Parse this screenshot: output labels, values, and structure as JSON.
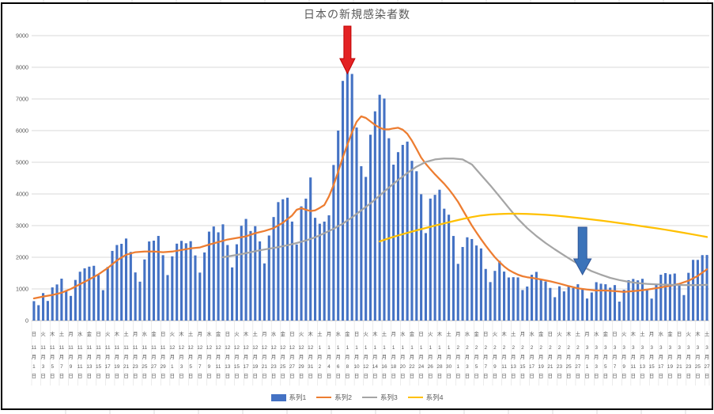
{
  "sheet": {
    "grid_color": "#D9D9D9",
    "background": "#FFFFFF"
  },
  "chart": {
    "title": "日本の新規感染者数",
    "frame_color": "#000000",
    "text_color": "#595959",
    "gridline_color": "#D9D9D9",
    "axis_line_color": "#BFBFBF",
    "y_axis": {
      "min": 0,
      "max": 9000,
      "step": 1000,
      "tick_labels": [
        "0",
        "1000",
        "2000",
        "3000",
        "4000",
        "5000",
        "6000",
        "7000",
        "8000",
        "9000"
      ]
    },
    "x_axis": {
      "weekdays": [
        "日",
        "月",
        "火",
        "水",
        "木",
        "金",
        "土"
      ],
      "start_weekday": "日",
      "month_suffix": "月",
      "day_suffix": "日",
      "months": [
        {
          "num": "11",
          "days": 30
        },
        {
          "num": "12",
          "days": 31
        },
        {
          "num": "1",
          "days": 31
        },
        {
          "num": "2",
          "days": 28
        },
        {
          "num": "3",
          "days": 27
        }
      ],
      "label_interval": 2
    },
    "legend": [
      {
        "label": "系列1",
        "swatch": "bar",
        "color": "#4472C4"
      },
      {
        "label": "系列2",
        "swatch": "line",
        "color": "#ED7D31"
      },
      {
        "label": "系列3",
        "swatch": "line",
        "color": "#A5A5A5"
      },
      {
        "label": "系列4",
        "swatch": "line",
        "color": "#FFC000"
      }
    ]
  },
  "chart_data": {
    "type": "bar",
    "title": "日本の新規感染者数",
    "xlabel": "",
    "ylabel": "",
    "ylim": [
      0,
      9000
    ],
    "x_range_label": "11月1日(日) - 3月27日(土), ラベルは2日毎",
    "series": [
      {
        "name": "系列1",
        "type": "bar",
        "color": "#4472C4",
        "values": [
          614,
          487,
          868,
          620,
          1048,
          1141,
          1325,
          957,
          780,
          1284,
          1543,
          1650,
          1704,
          1731,
          1440,
          961,
          1693,
          2201,
          2387,
          2425,
          2592,
          2168,
          1521,
          1229,
          1931,
          2499,
          2525,
          2674,
          2066,
          1438,
          2030,
          2430,
          2518,
          2442,
          2508,
          2058,
          1516,
          2152,
          2810,
          2972,
          2788,
          3041,
          2387,
          1680,
          2410,
          2994,
          3211,
          2829,
          2982,
          2501,
          1806,
          2687,
          3271,
          3742,
          3832,
          3881,
          3127,
          2403,
          3607,
          3852,
          4520,
          3246,
          3059,
          3127,
          3325,
          4915,
          6001,
          7570,
          7957,
          7790,
          6097,
          4876,
          4538,
          5870,
          6609,
          7133,
          7014,
          5759,
          4925,
          5320,
          5549,
          5653,
          5045,
          4717,
          3990,
          2764,
          3853,
          3971,
          4133,
          3534,
          3344,
          2673,
          1792,
          2324,
          2631,
          2576,
          2372,
          2279,
          1631,
          1216,
          1570,
          1887,
          1548,
          1362,
          1371,
          1364,
          965,
          1076,
          1448,
          1538,
          1301,
          1234,
          1032,
          739,
          1083,
          922,
          1076,
          1029,
          1148,
          999,
          697,
          888,
          1213,
          1165,
          1148,
          1040,
          1121,
          599,
          972,
          1277,
          1316,
          1271,
          1320,
          988,
          695,
          1133,
          1449,
          1500,
          1463,
          1486,
          1121,
          806,
          1509,
          1918,
          1917,
          2068,
          2072
        ]
      },
      {
        "name": "系列2",
        "type": "line",
        "color": "#ED7D31",
        "points_day_value": [
          [
            0,
            700
          ],
          [
            2,
            760
          ],
          [
            4,
            810
          ],
          [
            6,
            880
          ],
          [
            8,
            1000
          ],
          [
            10,
            1150
          ],
          [
            12,
            1300
          ],
          [
            14,
            1460
          ],
          [
            16,
            1660
          ],
          [
            18,
            1900
          ],
          [
            20,
            2080
          ],
          [
            22,
            2160
          ],
          [
            24,
            2180
          ],
          [
            26,
            2180
          ],
          [
            28,
            2160
          ],
          [
            30,
            2180
          ],
          [
            32,
            2230
          ],
          [
            34,
            2280
          ],
          [
            36,
            2310
          ],
          [
            38,
            2400
          ],
          [
            40,
            2480
          ],
          [
            42,
            2560
          ],
          [
            44,
            2610
          ],
          [
            46,
            2660
          ],
          [
            48,
            2760
          ],
          [
            50,
            2830
          ],
          [
            52,
            2920
          ],
          [
            54,
            3090
          ],
          [
            56,
            3320
          ],
          [
            57,
            3500
          ],
          [
            58,
            3550
          ],
          [
            59,
            3500
          ],
          [
            60,
            3460
          ],
          [
            61,
            3480
          ],
          [
            62,
            3560
          ],
          [
            63,
            3650
          ],
          [
            64,
            3920
          ],
          [
            65,
            4280
          ],
          [
            66,
            4700
          ],
          [
            67,
            5150
          ],
          [
            68,
            5560
          ],
          [
            69,
            5950
          ],
          [
            70,
            6280
          ],
          [
            71,
            6450
          ],
          [
            72,
            6400
          ],
          [
            73,
            6290
          ],
          [
            74,
            6180
          ],
          [
            75,
            6090
          ],
          [
            76,
            6040
          ],
          [
            77,
            6040
          ],
          [
            78,
            6070
          ],
          [
            79,
            6090
          ],
          [
            80,
            6030
          ],
          [
            81,
            5900
          ],
          [
            82,
            5680
          ],
          [
            83,
            5420
          ],
          [
            84,
            5150
          ],
          [
            85,
            4950
          ],
          [
            86,
            4780
          ],
          [
            87,
            4620
          ],
          [
            88,
            4470
          ],
          [
            89,
            4320
          ],
          [
            90,
            4150
          ],
          [
            91,
            3960
          ],
          [
            92,
            3750
          ],
          [
            93,
            3500
          ],
          [
            94,
            3250
          ],
          [
            95,
            3000
          ],
          [
            96,
            2780
          ],
          [
            97,
            2570
          ],
          [
            98,
            2370
          ],
          [
            99,
            2180
          ],
          [
            100,
            2000
          ],
          [
            101,
            1850
          ],
          [
            102,
            1710
          ],
          [
            103,
            1600
          ],
          [
            104,
            1520
          ],
          [
            105,
            1450
          ],
          [
            106,
            1400
          ],
          [
            107,
            1370
          ],
          [
            108,
            1350
          ],
          [
            110,
            1300
          ],
          [
            112,
            1240
          ],
          [
            114,
            1170
          ],
          [
            116,
            1090
          ],
          [
            118,
            1020
          ],
          [
            120,
            980
          ],
          [
            122,
            950
          ],
          [
            124,
            950
          ],
          [
            126,
            930
          ],
          [
            128,
            905
          ],
          [
            130,
            930
          ],
          [
            132,
            960
          ],
          [
            134,
            1000
          ],
          [
            136,
            1050
          ],
          [
            138,
            1100
          ],
          [
            140,
            1160
          ],
          [
            142,
            1260
          ],
          [
            144,
            1410
          ],
          [
            146,
            1620
          ]
        ]
      },
      {
        "name": "系列3",
        "type": "line",
        "color": "#A5A5A5",
        "points_day_value": [
          [
            41,
            2000
          ],
          [
            43,
            2050
          ],
          [
            45,
            2100
          ],
          [
            47,
            2160
          ],
          [
            49,
            2220
          ],
          [
            51,
            2270
          ],
          [
            53,
            2320
          ],
          [
            55,
            2380
          ],
          [
            57,
            2450
          ],
          [
            59,
            2530
          ],
          [
            61,
            2630
          ],
          [
            63,
            2760
          ],
          [
            65,
            2900
          ],
          [
            67,
            3060
          ],
          [
            69,
            3260
          ],
          [
            71,
            3480
          ],
          [
            73,
            3700
          ],
          [
            75,
            3950
          ],
          [
            77,
            4200
          ],
          [
            79,
            4440
          ],
          [
            81,
            4660
          ],
          [
            83,
            4860
          ],
          [
            85,
            5010
          ],
          [
            87,
            5090
          ],
          [
            89,
            5120
          ],
          [
            91,
            5120
          ],
          [
            93,
            5090
          ],
          [
            95,
            4930
          ],
          [
            97,
            4600
          ],
          [
            99,
            4270
          ],
          [
            101,
            3920
          ],
          [
            103,
            3560
          ],
          [
            105,
            3210
          ],
          [
            107,
            2920
          ],
          [
            109,
            2670
          ],
          [
            111,
            2450
          ],
          [
            113,
            2250
          ],
          [
            115,
            2060
          ],
          [
            117,
            1880
          ],
          [
            119,
            1710
          ],
          [
            121,
            1560
          ],
          [
            123,
            1450
          ],
          [
            125,
            1350
          ],
          [
            127,
            1280
          ],
          [
            129,
            1225
          ],
          [
            131,
            1185
          ],
          [
            133,
            1160
          ],
          [
            135,
            1145
          ],
          [
            137,
            1135
          ],
          [
            139,
            1128
          ],
          [
            141,
            1122
          ],
          [
            143,
            1120
          ],
          [
            145,
            1125
          ],
          [
            146,
            1130
          ]
        ]
      },
      {
        "name": "系列4",
        "type": "line",
        "color": "#FFC000",
        "points_day_value": [
          [
            75,
            2500
          ],
          [
            77,
            2600
          ],
          [
            79,
            2690
          ],
          [
            81,
            2770
          ],
          [
            83,
            2850
          ],
          [
            85,
            2925
          ],
          [
            87,
            3000
          ],
          [
            89,
            3070
          ],
          [
            91,
            3140
          ],
          [
            93,
            3210
          ],
          [
            95,
            3270
          ],
          [
            97,
            3320
          ],
          [
            99,
            3350
          ],
          [
            101,
            3365
          ],
          [
            103,
            3375
          ],
          [
            105,
            3375
          ],
          [
            107,
            3368
          ],
          [
            109,
            3356
          ],
          [
            111,
            3340
          ],
          [
            113,
            3318
          ],
          [
            115,
            3290
          ],
          [
            117,
            3260
          ],
          [
            119,
            3228
          ],
          [
            121,
            3195
          ],
          [
            123,
            3160
          ],
          [
            125,
            3122
          ],
          [
            127,
            3082
          ],
          [
            129,
            3042
          ],
          [
            131,
            3000
          ],
          [
            133,
            2958
          ],
          [
            135,
            2915
          ],
          [
            137,
            2870
          ],
          [
            139,
            2822
          ],
          [
            141,
            2772
          ],
          [
            143,
            2720
          ],
          [
            145,
            2668
          ],
          [
            146,
            2640
          ]
        ]
      }
    ],
    "annotations": [
      {
        "name": "red-down-arrow",
        "shape": "down_arrow",
        "fill": "#E32224",
        "stroke": "#C00000",
        "day_index": 68,
        "top_value": 9300,
        "tip_value": 7800,
        "shaft_width": 9,
        "head_width": 19,
        "head_length": 19
      },
      {
        "name": "blue-down-arrow",
        "shape": "down_arrow",
        "fill": "#3B73B9",
        "stroke": "#2F5597",
        "day_index": 119,
        "top_value": 2950,
        "tip_value": 1450,
        "shaft_width": 11,
        "head_width": 22,
        "head_length": 20
      }
    ]
  }
}
